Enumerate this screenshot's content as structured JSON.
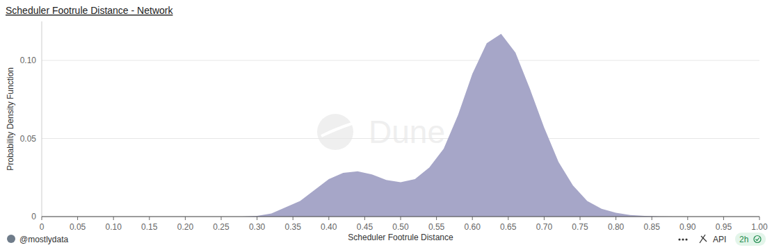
{
  "chart_data": {
    "type": "area",
    "title": "Scheduler Footrule Distance - Network",
    "x_label": "Scheduler Footrule Distance",
    "y_label": "Probability Density Function",
    "watermark": "Dune",
    "footer": "@mostlydata",
    "api_label": "API",
    "refresh": "2h",
    "color": "#a6a6c8",
    "grid": true,
    "x": [
      0,
      0.02,
      0.04,
      0.06,
      0.08,
      0.1,
      0.12,
      0.14,
      0.16,
      0.18,
      0.2,
      0.22,
      0.24,
      0.26,
      0.28,
      0.3,
      0.32,
      0.34,
      0.36,
      0.38,
      0.4,
      0.42,
      0.44,
      0.46,
      0.48,
      0.5,
      0.52,
      0.54,
      0.56,
      0.58,
      0.6,
      0.62,
      0.64,
      0.66,
      0.68,
      0.7,
      0.72,
      0.74,
      0.76,
      0.78,
      0.8,
      0.82,
      0.84,
      0.86,
      0.88,
      0.9,
      0.92,
      0.94,
      0.96,
      0.98,
      1
    ],
    "values": [
      0,
      0,
      0,
      0,
      0,
      0,
      0,
      0,
      0,
      0,
      0,
      0,
      0,
      0,
      0,
      0.0005,
      0.002,
      0.006,
      0.01,
      0.017,
      0.024,
      0.028,
      0.029,
      0.027,
      0.0235,
      0.022,
      0.024,
      0.0315,
      0.0435,
      0.065,
      0.0915,
      0.111,
      0.117,
      0.105,
      0.082,
      0.057,
      0.035,
      0.02,
      0.01,
      0.005,
      0.0025,
      0.001,
      0.0004,
      0.0001,
      0,
      0,
      0,
      0,
      0,
      0,
      0
    ],
    "xlim": [
      0,
      1
    ],
    "ylim": [
      0,
      0.125
    ],
    "xticks": [
      0,
      0.05,
      {
        "value": 0.1,
        "label": "0.10"
      },
      0.15,
      {
        "value": 0.2,
        "label": "0.20"
      },
      0.25,
      {
        "value": 0.3,
        "label": "0.30"
      },
      0.35,
      {
        "value": 0.4,
        "label": "0.40"
      },
      0.45,
      {
        "value": 0.5,
        "label": "0.50"
      },
      0.55,
      {
        "value": 0.6,
        "label": "0.60"
      },
      0.65,
      {
        "value": 0.7,
        "label": "0.70"
      },
      0.75,
      {
        "value": 0.8,
        "label": "0.80"
      },
      0.85,
      {
        "value": 0.9,
        "label": "0.90"
      },
      0.95,
      {
        "value": 1,
        "label": "1.00"
      }
    ],
    "yticks": [
      0,
      0.05,
      {
        "value": 0.1,
        "label": "0.10"
      }
    ]
  }
}
